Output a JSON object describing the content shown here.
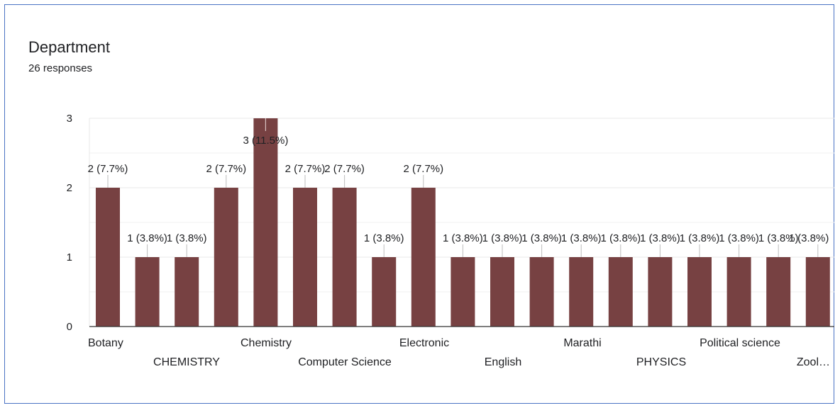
{
  "question": {
    "title": "Department",
    "responses": "26 responses"
  },
  "colors": {
    "bar": "#774142",
    "grid": "#e8e8e8",
    "gridMinor": "#f0f0f0",
    "axis": "#333333",
    "border": "#4a72c4"
  },
  "chart_data": {
    "type": "bar",
    "title": "Department",
    "ylim": [
      0,
      3
    ],
    "yticks": [
      0,
      1,
      2,
      3
    ],
    "grid": true,
    "categories": [
      "Botany",
      "CHEMISTRY",
      "",
      "",
      "Chemistry",
      "Computer Science",
      "",
      "Electronic",
      "",
      "English",
      "",
      "Marathi",
      "",
      "PHYSICS",
      "",
      "Political science",
      "",
      "",
      "Zool…"
    ],
    "values": [
      2,
      1,
      1,
      2,
      3,
      2,
      2,
      1,
      2,
      1,
      1,
      1,
      1,
      1,
      1,
      1,
      1,
      1,
      1
    ],
    "data_labels": [
      "2 (7.7%)",
      "1 (3.8%)",
      "1 (3.8%)",
      "2 (7.7%)",
      "3 (11.5%)",
      "2 (7.7%)",
      "2 (7.7%)",
      "1 (3.8%)",
      "2 (7.7%)",
      "1 (3.8%)",
      "1 (3.8%)",
      "1 (3.8%)",
      "1 (3.8%)",
      "1 (3.8%)",
      "1 (3.8%)",
      "1 (3.8%)",
      "1 (3.8%)",
      "1 (3.8%)",
      "1 (3.8%)"
    ]
  }
}
